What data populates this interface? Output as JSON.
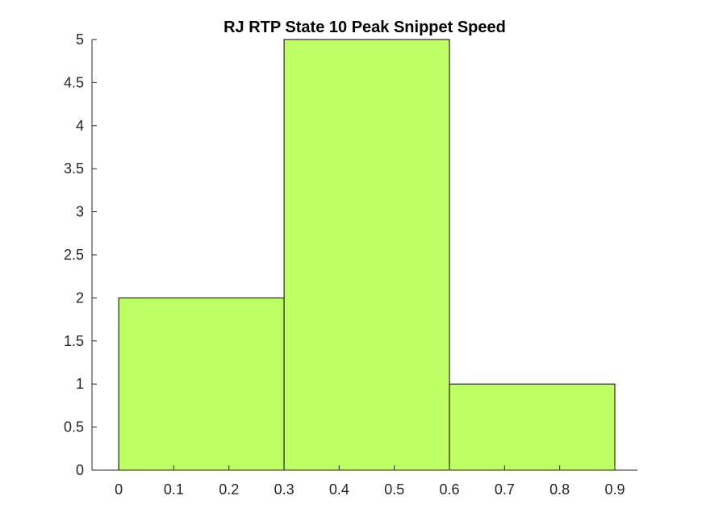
{
  "chart_data": {
    "type": "bar",
    "title": "RJ  RTP State 10 Peak Snippet Speed",
    "xlabel": "",
    "ylabel": "",
    "bins": [
      {
        "start": 0.0,
        "end": 0.3,
        "count": 2
      },
      {
        "start": 0.3,
        "end": 0.6,
        "count": 5
      },
      {
        "start": 0.6,
        "end": 0.9,
        "count": 1
      }
    ],
    "xlim": [
      -0.0485,
      0.941
    ],
    "ylim": [
      0,
      5
    ],
    "x_ticks": [
      0,
      0.1,
      0.2,
      0.3,
      0.4,
      0.5,
      0.6,
      0.7,
      0.8,
      0.9
    ],
    "x_tick_labels": [
      "0",
      "0.1",
      "0.2",
      "0.3",
      "0.4",
      "0.5",
      "0.6",
      "0.7",
      "0.8",
      "0.9"
    ],
    "y_ticks": [
      0,
      0.5,
      1,
      1.5,
      2,
      2.5,
      3,
      3.5,
      4,
      4.5,
      5
    ],
    "y_tick_labels": [
      "0",
      "0.5",
      "1",
      "1.5",
      "2",
      "2.5",
      "3",
      "3.5",
      "4",
      "4.5",
      "5"
    ],
    "bar_color": "#bfff66",
    "grid": false,
    "box": false
  }
}
